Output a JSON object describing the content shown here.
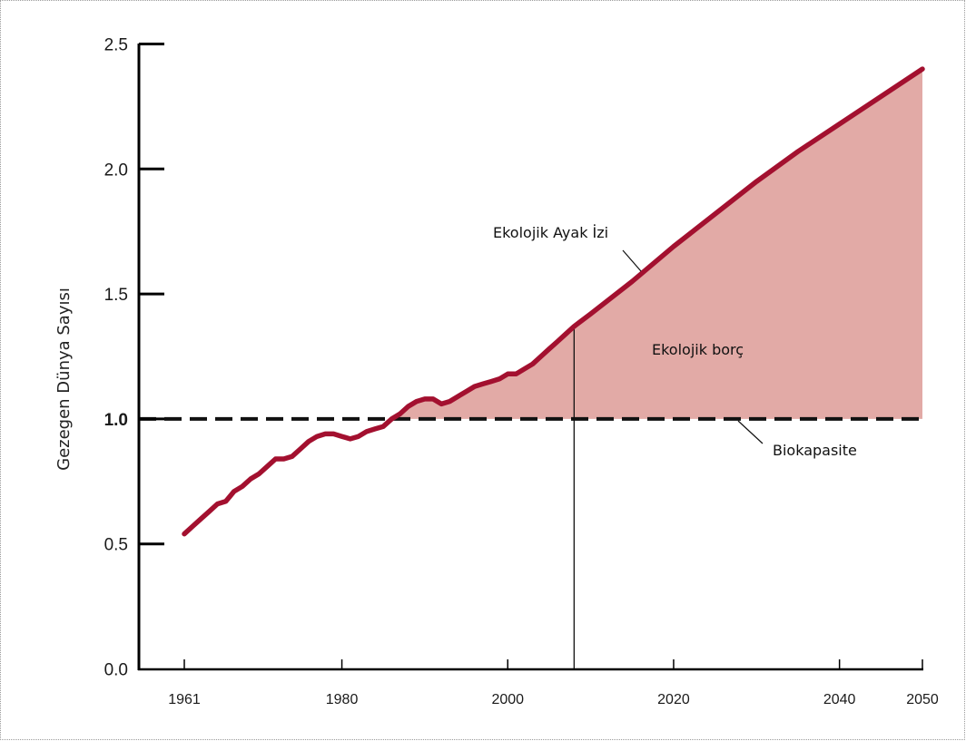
{
  "chart_data": {
    "type": "line",
    "ylabel": "Gezegen Dünya Sayısı",
    "xlabel": "",
    "xlim": [
      1961,
      2050
    ],
    "ylim": [
      0,
      2.5
    ],
    "x_ticks": [
      "1961",
      "1980",
      "2000",
      "2020",
      "2040",
      "2050"
    ],
    "y_ticks": [
      "0.0",
      "0.5",
      "1.0",
      "1.5",
      "2.0",
      "2.5"
    ],
    "grid": false,
    "series": [
      {
        "name": "Ekolojik Ayak İzi",
        "color": "#a3102f",
        "x": [
          1961,
          1962,
          1963,
          1964,
          1965,
          1966,
          1967,
          1968,
          1969,
          1970,
          1971,
          1972,
          1973,
          1974,
          1975,
          1976,
          1977,
          1978,
          1979,
          1980,
          1981,
          1982,
          1983,
          1984,
          1985,
          1986,
          1987,
          1988,
          1989,
          1990,
          1991,
          1992,
          1993,
          1994,
          1995,
          1996,
          1997,
          1998,
          1999,
          2000,
          2001,
          2002,
          2003,
          2004,
          2005,
          2006,
          2007,
          2008,
          2010,
          2015,
          2020,
          2025,
          2030,
          2035,
          2040,
          2045,
          2050
        ],
        "values": [
          0.54,
          0.57,
          0.6,
          0.63,
          0.66,
          0.67,
          0.71,
          0.73,
          0.76,
          0.78,
          0.81,
          0.84,
          0.84,
          0.85,
          0.88,
          0.91,
          0.93,
          0.94,
          0.94,
          0.93,
          0.92,
          0.93,
          0.95,
          0.96,
          0.97,
          1.0,
          1.02,
          1.05,
          1.07,
          1.08,
          1.08,
          1.06,
          1.07,
          1.09,
          1.11,
          1.13,
          1.14,
          1.15,
          1.16,
          1.18,
          1.18,
          1.2,
          1.22,
          1.25,
          1.28,
          1.31,
          1.34,
          1.37,
          1.42,
          1.55,
          1.69,
          1.82,
          1.95,
          2.07,
          2.18,
          2.29,
          2.4
        ]
      },
      {
        "name": "Biokapasite",
        "color": "#111111",
        "style": "dashed",
        "x": [
          1961,
          2050
        ],
        "values": [
          1.0,
          1.0
        ]
      }
    ],
    "shaded_region": {
      "label": "Ekolojik borç",
      "color": "#e2aaa6",
      "between": [
        "Ekolojik Ayak İzi",
        "Biokapasite"
      ]
    },
    "vertical_marker": {
      "x": 2008
    },
    "annotations": [
      {
        "text": "Ekolojik Ayak İzi",
        "target_series": "Ekolojik Ayak İzi"
      },
      {
        "text": "Ekolojik borç"
      },
      {
        "text": "Biokapasite",
        "target_series": "Biokapasite"
      }
    ]
  }
}
